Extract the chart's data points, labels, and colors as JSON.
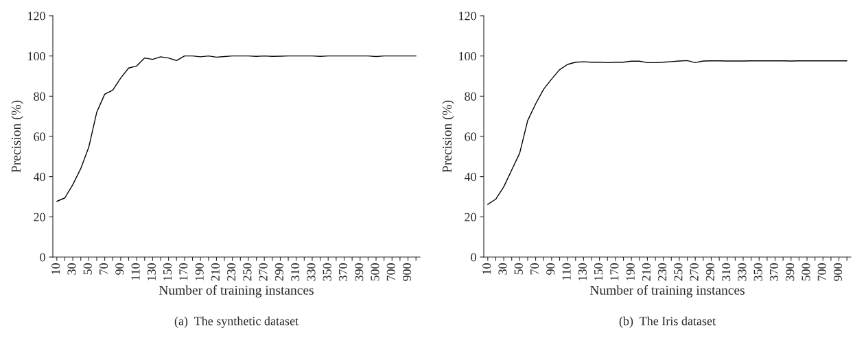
{
  "chart_data": [
    {
      "type": "line",
      "xlabel": "Number of training instances",
      "ylabel": "Precision (%)",
      "annotations": [
        "(a)  The synthetic dataset"
      ],
      "categories": [
        "10",
        null,
        "30",
        null,
        "50",
        null,
        "70",
        null,
        "90",
        null,
        "110",
        null,
        "130",
        null,
        "150",
        null,
        "170",
        null,
        "190",
        null,
        "210",
        null,
        "230",
        null,
        "250",
        null,
        "270",
        null,
        "290",
        null,
        "310",
        null,
        "330",
        null,
        "350",
        null,
        "370",
        null,
        "390",
        null,
        "500",
        null,
        "700",
        null,
        "900",
        null
      ],
      "series": [
        {
          "color": "#000000",
          "values": [
            27.7,
            29.4,
            36,
            44,
            54.6,
            72,
            81,
            83,
            89,
            94,
            95,
            99,
            98.3,
            99.6,
            99,
            97.7,
            100,
            100,
            99.6,
            100,
            99.4,
            99.7,
            100,
            100,
            100,
            99.8,
            100,
            99.8,
            99.9,
            100,
            100,
            100,
            100,
            99.8,
            100,
            100,
            100,
            100,
            100,
            100,
            99.7,
            100,
            100,
            100,
            100,
            100
          ]
        }
      ],
      "ylim": [
        0,
        120
      ],
      "yticks": [
        0,
        20,
        40,
        60,
        80,
        100,
        120
      ],
      "grid": false
    },
    {
      "type": "line",
      "xlabel": "Number of training instances",
      "ylabel": "Precision (%)",
      "annotations": [
        "(b)  The Iris dataset"
      ],
      "categories": [
        "10",
        null,
        "30",
        null,
        "50",
        null,
        "70",
        null,
        "90",
        null,
        "110",
        null,
        "130",
        null,
        "150",
        null,
        "170",
        null,
        "190",
        null,
        "210",
        null,
        "230",
        null,
        "250",
        null,
        "270",
        null,
        "290",
        null,
        "310",
        null,
        "330",
        null,
        "350",
        null,
        "370",
        null,
        "390",
        null,
        "500",
        null,
        "700",
        null,
        "900",
        null
      ],
      "series": [
        {
          "color": "#000000",
          "values": [
            26.2,
            28.8,
            34.9,
            43.3,
            51.7,
            67.9,
            76.2,
            83.5,
            88.5,
            93.2,
            95.8,
            96.9,
            97.1,
            96.9,
            96.9,
            96.7,
            96.9,
            96.9,
            97.4,
            97.4,
            96.7,
            96.7,
            96.9,
            97.2,
            97.5,
            97.7,
            96.7,
            97.5,
            97.6,
            97.6,
            97.5,
            97.5,
            97.5,
            97.6,
            97.6,
            97.6,
            97.6,
            97.6,
            97.5,
            97.6,
            97.6,
            97.6,
            97.6,
            97.6,
            97.6,
            97.6
          ]
        }
      ],
      "ylim": [
        0,
        120
      ],
      "yticks": [
        0,
        20,
        40,
        60,
        80,
        100,
        120
      ],
      "grid": false
    }
  ]
}
